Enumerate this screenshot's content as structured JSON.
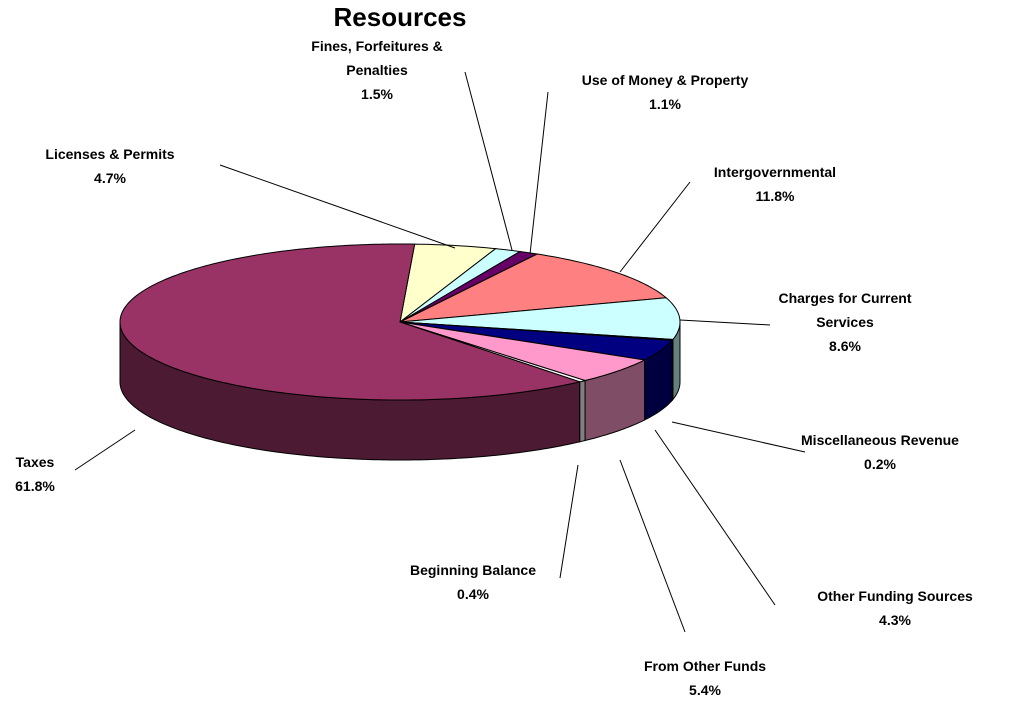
{
  "chart_data": {
    "type": "pie3d",
    "title": "Resources",
    "categories": [
      "Taxes",
      "Licenses & Permits",
      "Fines, Forfeitures & Penalties",
      "Use of Money & Property",
      "Intergovernmental",
      "Charges for Current Services",
      "Miscellaneous Revenue",
      "Other Funding Sources",
      "From Other Funds",
      "Beginning Balance"
    ],
    "values": [
      61.8,
      4.7,
      1.5,
      1.1,
      11.8,
      8.6,
      0.2,
      4.3,
      5.4,
      0.4
    ],
    "value_labels": [
      "61.8%",
      "4.7%",
      "1.5%",
      "1.1%",
      "11.8%",
      "8.6%",
      "0.2%",
      "4.3%",
      "5.4%",
      "0.4%"
    ],
    "colors": [
      "#993366",
      "#ffffcc",
      "#ccffff",
      "#660066",
      "#ff8080",
      "#ccffff",
      "#808080",
      "#000080",
      "#ff99cc",
      "#ffffff"
    ]
  }
}
